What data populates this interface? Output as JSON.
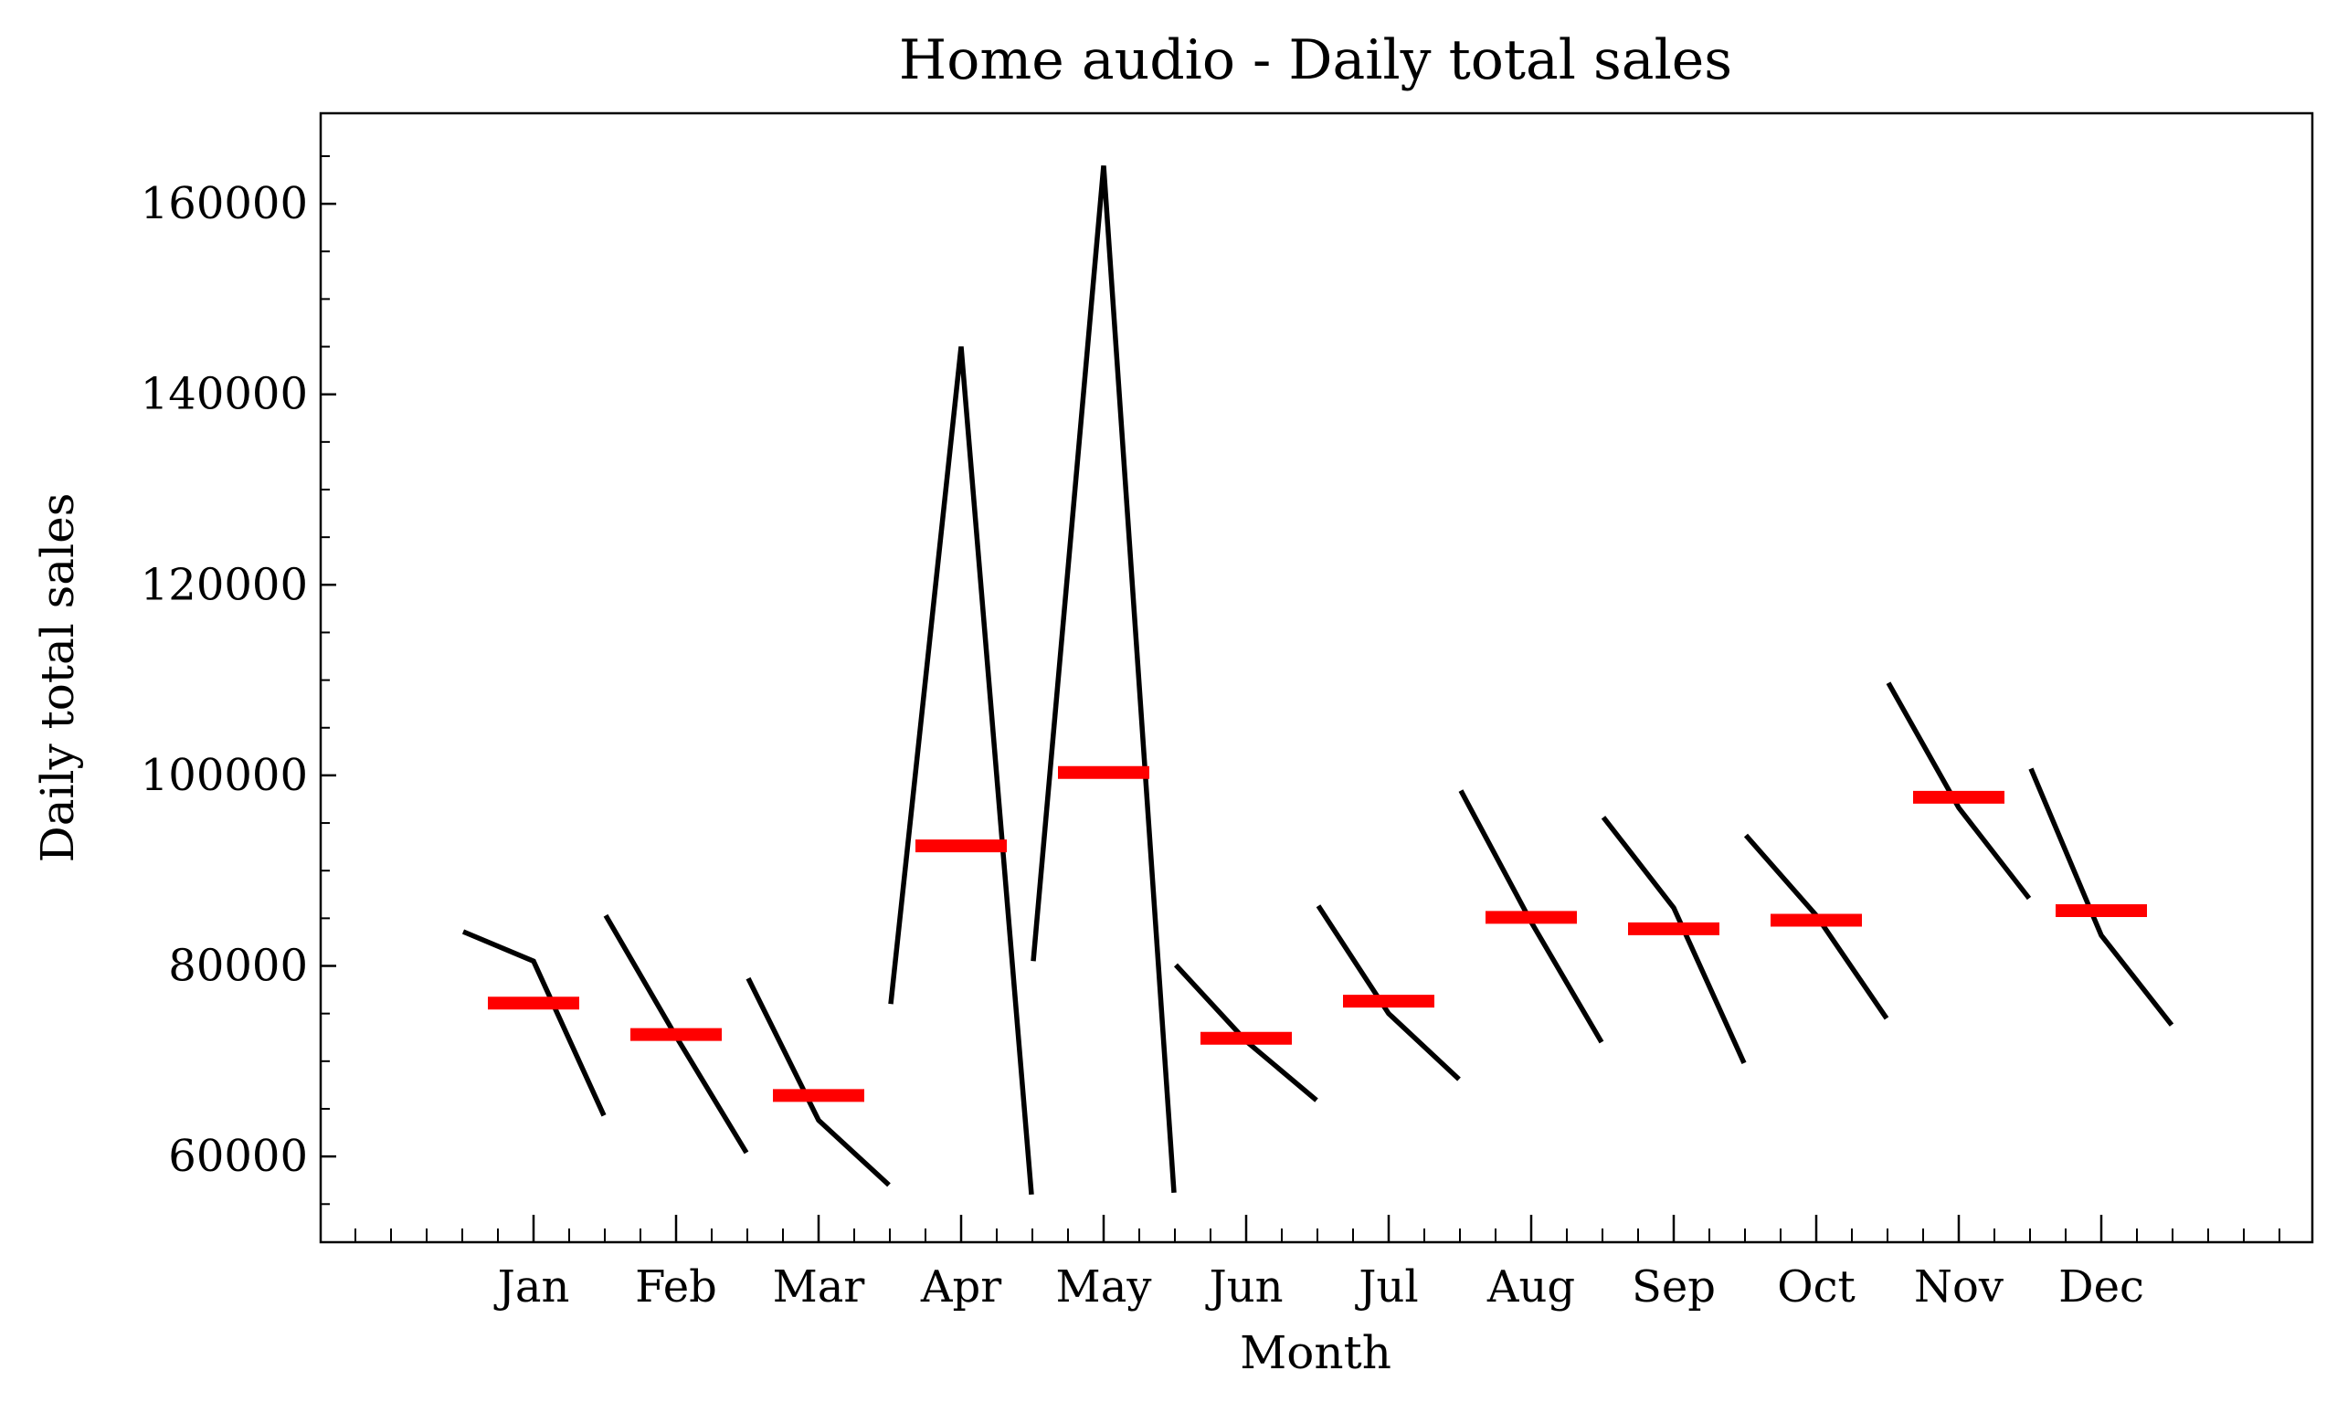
{
  "chart_data": {
    "type": "line",
    "title": "Home audio - Daily total sales",
    "xlabel": "Month",
    "ylabel": "Daily total sales",
    "categories": [
      "Jan",
      "Feb",
      "Mar",
      "Apr",
      "May",
      "Jun",
      "Jul",
      "Aug",
      "Sep",
      "Oct",
      "Nov",
      "Dec"
    ],
    "ylim": [
      51000,
      169500
    ],
    "y_ticks": [
      60000,
      80000,
      100000,
      120000,
      140000,
      160000
    ],
    "y_tick_labels": [
      "60000",
      "80000",
      "100000",
      "120000",
      "140000",
      "160000"
    ],
    "grid": false,
    "series": [
      {
        "values": [
          [
            83600,
            80500,
            64300
          ],
          [
            85300,
            72600,
            60400
          ],
          [
            78700,
            63800,
            57000
          ],
          [
            76000,
            145000,
            56000
          ],
          [
            80500,
            164000,
            56200
          ],
          [
            80100,
            72100,
            65900
          ],
          [
            86300,
            75000,
            68100
          ],
          [
            98400,
            84600,
            72000
          ],
          [
            95600,
            86100,
            69800
          ],
          [
            93700,
            85300,
            74500
          ],
          [
            109700,
            96600,
            87100
          ],
          [
            100700,
            83200,
            73800
          ]
        ]
      },
      {
        "values": [
          76100,
          72800,
          66400,
          92600,
          100300,
          72400,
          76300,
          85100,
          83900,
          84800,
          97700,
          85800
        ]
      }
    ],
    "colors": {
      "line": "#000000",
      "mean": "#ff0000"
    }
  }
}
